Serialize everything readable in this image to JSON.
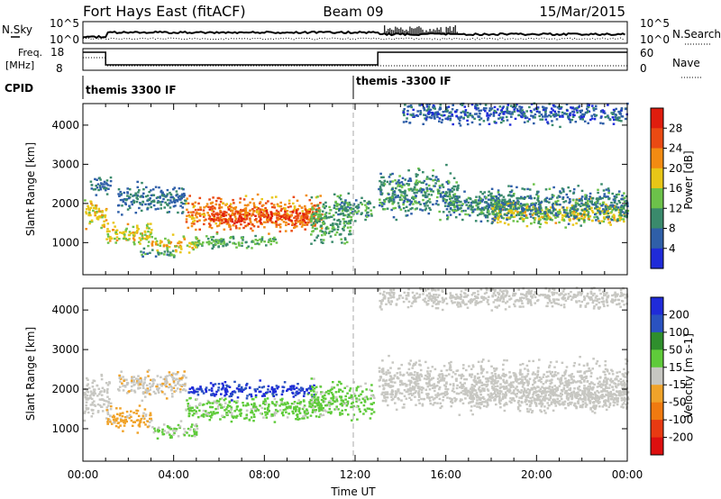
{
  "header": {
    "station": "Fort Hays East (fitACF)",
    "beam": "Beam 09",
    "date": "15/Mar/2015"
  },
  "summary_panels": {
    "nsky_label": "N.Sky",
    "nsky_ticks": [
      "10^5",
      "10^0"
    ],
    "nsearch_label": "N.Search",
    "freq_label_line1": "Freq.",
    "freq_label_line2": "[MHz]",
    "freq_ticks": [
      "18",
      "8"
    ],
    "nave_label": "Nave",
    "nave_ticks": [
      "60",
      "0"
    ],
    "cpid_label": "CPID",
    "cpid_segments": [
      {
        "label": "themis 3300 IF",
        "start_hour": 0
      },
      {
        "label": "themis -3300 IF",
        "start_hour": 12
      }
    ]
  },
  "x_axis": {
    "label": "Time UT",
    "ticks": [
      "00:00",
      "04:00",
      "08:00",
      "12:00",
      "16:00",
      "20:00",
      "00:00"
    ]
  },
  "chart_data": [
    {
      "type": "heatmap",
      "name": "power",
      "ylabel": "Slant Range [km]",
      "yticks": [
        1000,
        2000,
        3000,
        4000
      ],
      "ylim": [
        180,
        4550
      ],
      "xlim_hours": [
        0,
        24
      ],
      "colorbar_label": "Power [dB]",
      "colorbar_ticks": [
        4,
        8,
        12,
        16,
        20,
        24,
        28
      ],
      "colorbar_range": [
        0,
        32
      ],
      "colormap": [
        "#1f2bd9",
        "#2f5fa8",
        "#3a8a6c",
        "#6cc24a",
        "#e8c617",
        "#f28b12",
        "#ea4a13",
        "#e01d0e"
      ],
      "bands": [
        {
          "t0": 0.0,
          "t1": 1.0,
          "r": 1700,
          "w": 550,
          "level": 18
        },
        {
          "t0": 0.3,
          "t1": 1.2,
          "r": 2450,
          "w": 380,
          "level": 8
        },
        {
          "t0": 1.0,
          "t1": 3.0,
          "r": 1200,
          "w": 450,
          "level": 17
        },
        {
          "t0": 1.5,
          "t1": 4.5,
          "r": 2100,
          "w": 550,
          "level": 8
        },
        {
          "t0": 3.0,
          "t1": 5.0,
          "r": 950,
          "w": 300,
          "level": 18
        },
        {
          "t0": 2.5,
          "t1": 4.0,
          "r": 700,
          "w": 200,
          "level": 10
        },
        {
          "t0": 4.5,
          "t1": 10.5,
          "r": 1700,
          "w": 650,
          "level": 23
        },
        {
          "t0": 5.5,
          "t1": 10.0,
          "r": 1650,
          "w": 350,
          "level": 27
        },
        {
          "t0": 4.8,
          "t1": 8.5,
          "r": 1000,
          "w": 250,
          "level": 12
        },
        {
          "t0": 10.0,
          "t1": 11.8,
          "r": 1550,
          "w": 900,
          "level": 12
        },
        {
          "t0": 11.0,
          "t1": 12.8,
          "r": 1850,
          "w": 450,
          "level": 10
        },
        {
          "t0": 13.0,
          "t1": 16.5,
          "r": 2200,
          "w": 900,
          "level": 10
        },
        {
          "t0": 16.0,
          "t1": 19.0,
          "r": 1900,
          "w": 550,
          "level": 10
        },
        {
          "t0": 18.0,
          "t1": 24.0,
          "r": 1750,
          "w": 500,
          "level": 17
        },
        {
          "t0": 17.5,
          "t1": 24.0,
          "r": 1950,
          "w": 700,
          "level": 9
        },
        {
          "t0": 14.0,
          "t1": 24.0,
          "r": 4300,
          "w": 450,
          "level": 6
        }
      ]
    },
    {
      "type": "heatmap",
      "name": "velocity",
      "ylabel": "Slant Range [km]",
      "yticks": [
        1000,
        2000,
        3000,
        4000
      ],
      "ylim": [
        180,
        4550
      ],
      "xlim_hours": [
        0,
        24
      ],
      "colorbar_label": "Velocity [m s-1]",
      "colorbar_ticks": [
        200,
        100,
        50,
        15,
        -15,
        -50,
        -100,
        -200
      ],
      "colorbar_range": [
        -250,
        250
      ],
      "colormap": [
        "#1f2bd9",
        "#2a52c0",
        "#2f8f2d",
        "#5fcb3a",
        "#c7c7c2",
        "#f0a32a",
        "#f07a10",
        "#e83a12",
        "#dd0f0f"
      ],
      "bands": [
        {
          "t0": 0.0,
          "t1": 1.2,
          "r": 1800,
          "w": 800,
          "level": 0
        },
        {
          "t0": 1.0,
          "t1": 3.0,
          "r": 1250,
          "w": 450,
          "level": -40
        },
        {
          "t0": 1.5,
          "t1": 4.5,
          "r": 2100,
          "w": 550,
          "level": -20
        },
        {
          "t0": 3.0,
          "t1": 5.0,
          "r": 950,
          "w": 300,
          "level": 30
        },
        {
          "t0": 4.5,
          "t1": 10.5,
          "r": 1500,
          "w": 500,
          "level": 40
        },
        {
          "t0": 4.6,
          "t1": 10.2,
          "r": 1950,
          "w": 300,
          "level": 200
        },
        {
          "t0": 10.0,
          "t1": 12.8,
          "r": 1700,
          "w": 700,
          "level": 40
        },
        {
          "t0": 13.0,
          "t1": 24.0,
          "r": 2100,
          "w": 900,
          "level": 0
        },
        {
          "t0": 17.0,
          "t1": 24.0,
          "r": 1750,
          "w": 500,
          "level": 0
        },
        {
          "t0": 13.0,
          "t1": 24.0,
          "r": 4300,
          "w": 450,
          "level": 0
        }
      ]
    }
  ]
}
